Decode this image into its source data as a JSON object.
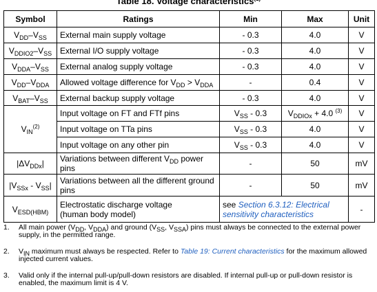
{
  "title": [
    "Table 18. Voltage characteristics",
    {
      "sup": "(1)"
    }
  ],
  "table": {
    "headers": [
      "Symbol",
      "Ratings",
      "Min",
      "Max",
      "Unit"
    ],
    "rows": [
      {
        "symbol": [
          "V",
          {
            "sub": "DD"
          },
          "–V",
          {
            "sub": "SS"
          }
        ],
        "rating": [
          "External main supply voltage"
        ],
        "min": "- 0.3",
        "max": "4.0",
        "unit": "V"
      },
      {
        "symbol": [
          "V",
          {
            "sub": "DDIO2"
          },
          "–V",
          {
            "sub": "SS"
          }
        ],
        "rating": [
          "External I/O supply voltage"
        ],
        "min": "- 0.3",
        "max": "4.0",
        "unit": "V"
      },
      {
        "symbol": [
          "V",
          {
            "sub": "DDA"
          },
          "–V",
          {
            "sub": "SS"
          }
        ],
        "rating": [
          "External analog supply voltage"
        ],
        "min": "- 0.3",
        "max": "4.0",
        "unit": "V"
      },
      {
        "symbol": [
          "V",
          {
            "sub": "DD"
          },
          "–V",
          {
            "sub": "DDA"
          }
        ],
        "rating": [
          "Allowed voltage difference for V",
          {
            "sub": "DD"
          },
          " > V",
          {
            "sub": "DDA"
          }
        ],
        "min": "-",
        "max": "0.4",
        "unit": "V"
      },
      {
        "symbol": [
          "V",
          {
            "sub": "BAT"
          },
          "–V",
          {
            "sub": "SS"
          }
        ],
        "rating": [
          "External backup supply voltage"
        ],
        "min": "- 0.3",
        "max": "4.0",
        "unit": "V"
      },
      {
        "symbol": [
          "V",
          {
            "sub": "IN"
          },
          {
            "sup": "(2)"
          }
        ],
        "subrows": [
          {
            "rating": [
              "Input voltage on FT and FTf pins"
            ],
            "min": [
              "V",
              {
                "sub": "SS"
              },
              " - 0.3"
            ],
            "max": [
              "V",
              {
                "sub": "DDIOx"
              },
              " + 4.0 ",
              {
                "sup": "(3)"
              }
            ],
            "unit": "V"
          },
          {
            "rating": [
              "Input voltage on TTa pins"
            ],
            "min": [
              "V",
              {
                "sub": "SS"
              },
              " - 0.3"
            ],
            "max": "4.0",
            "unit": "V"
          },
          {
            "rating": [
              "Input voltage on any other pin"
            ],
            "min": [
              "V",
              {
                "sub": "SS"
              },
              " - 0.3"
            ],
            "max": "4.0",
            "unit": "V"
          }
        ]
      },
      {
        "symbol": [
          "|ΔV",
          {
            "sub": "DDx"
          },
          "|"
        ],
        "rating": [
          "Variations between different V",
          {
            "sub": "DD"
          },
          " power pins"
        ],
        "min": "-",
        "max": "50",
        "unit": "mV"
      },
      {
        "symbol": [
          "|V",
          {
            "sub": "SSx"
          },
          " - V",
          {
            "sub": "SS"
          },
          "|"
        ],
        "rating": [
          "Variations between all the different ground pins"
        ],
        "min": "-",
        "max": "50",
        "unit": "mV"
      },
      {
        "symbol": [
          "V",
          {
            "sub": "ESD(HBM)"
          }
        ],
        "rating": {
          "lines": [
            "Electrostatic discharge voltage",
            "(human body model)"
          ]
        },
        "min_max": [
          "see ",
          {
            "link": "Section 6.3.12: Electrical sensitivity characteristics"
          }
        ],
        "unit": "-"
      }
    ]
  },
  "footnotes": [
    {
      "num": "1.",
      "text": [
        "All main power (V",
        {
          "sub": "DD"
        },
        ", V",
        {
          "sub": "DDA"
        },
        ") and ground (V",
        {
          "sub": "SS"
        },
        ", V",
        {
          "sub": "SSA"
        },
        ") pins must always be connected to the external power supply, in the permitted range."
      ]
    },
    {
      "num": "2.",
      "text": [
        "V",
        {
          "sub": "IN"
        },
        " maximum must always be respected. Refer to ",
        {
          "link": "Table 19: Current characteristics"
        },
        " for the maximum allowed injected current values."
      ]
    },
    {
      "num": "3.",
      "text": [
        "Valid only if the internal pull-up/pull-down resistors are disabled. If internal pull-up or pull-down resistor is enabled, the maximum limit is 4 V."
      ]
    }
  ]
}
